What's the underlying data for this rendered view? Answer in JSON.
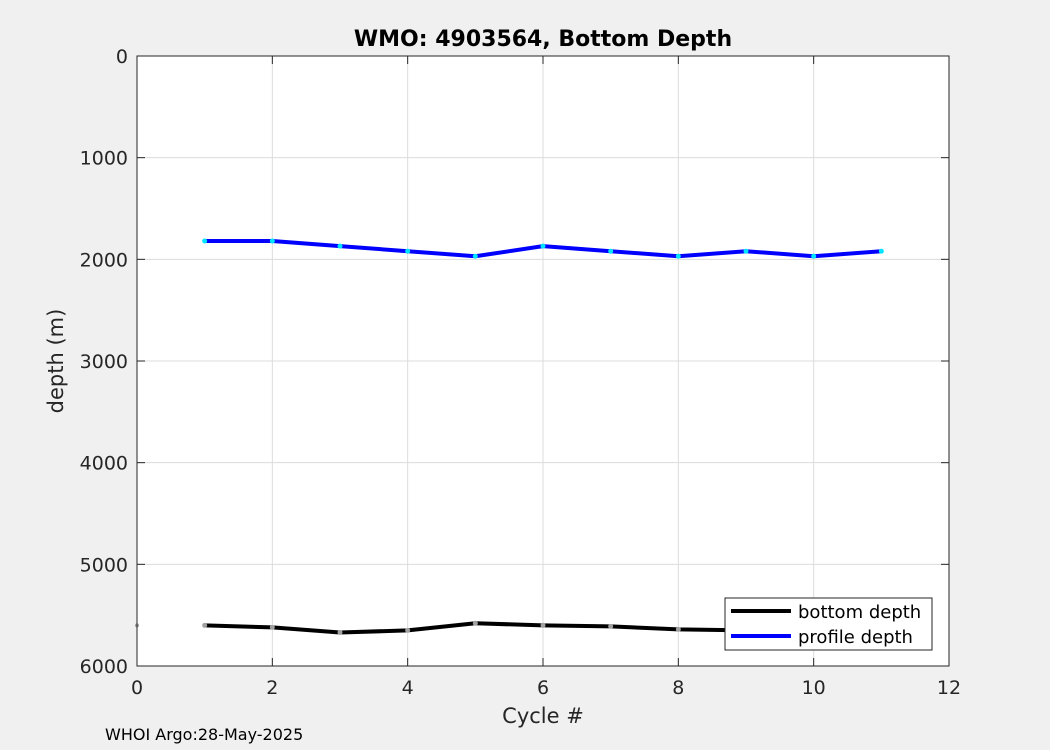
{
  "footer": "WHOI Argo:28-May-2025",
  "chart_data": {
    "type": "line",
    "title": "WMO: 4903564, Bottom Depth",
    "xlabel": "Cycle #",
    "ylabel": "depth (m)",
    "xlim": [
      0,
      12
    ],
    "ylim": [
      0,
      6000
    ],
    "y_reversed": true,
    "xticks": [
      0,
      2,
      4,
      6,
      8,
      10,
      12
    ],
    "yticks": [
      0,
      1000,
      2000,
      3000,
      4000,
      5000,
      6000
    ],
    "grid": true,
    "legend_position": "bottom-right",
    "series": [
      {
        "name": "bottom depth",
        "color": "#000000",
        "marker_color": "#a0a0a0",
        "x": [
          1,
          2,
          3,
          4,
          5,
          6,
          7,
          8,
          9,
          10,
          11
        ],
        "y": [
          5600,
          5620,
          5670,
          5650,
          5580,
          5600,
          5610,
          5640,
          5650,
          5660,
          5660
        ]
      },
      {
        "name": "profile depth",
        "color": "#0000ff",
        "marker_color": "#00e5ff",
        "x": [
          1,
          2,
          3,
          4,
          5,
          6,
          7,
          8,
          9,
          10,
          11
        ],
        "y": [
          1820,
          1820,
          1870,
          1920,
          1970,
          1870,
          1920,
          1970,
          1920,
          1970,
          1920
        ]
      }
    ],
    "extra_points": [
      {
        "x": 0,
        "y": 5600,
        "color": "#a0a0a0"
      }
    ]
  }
}
